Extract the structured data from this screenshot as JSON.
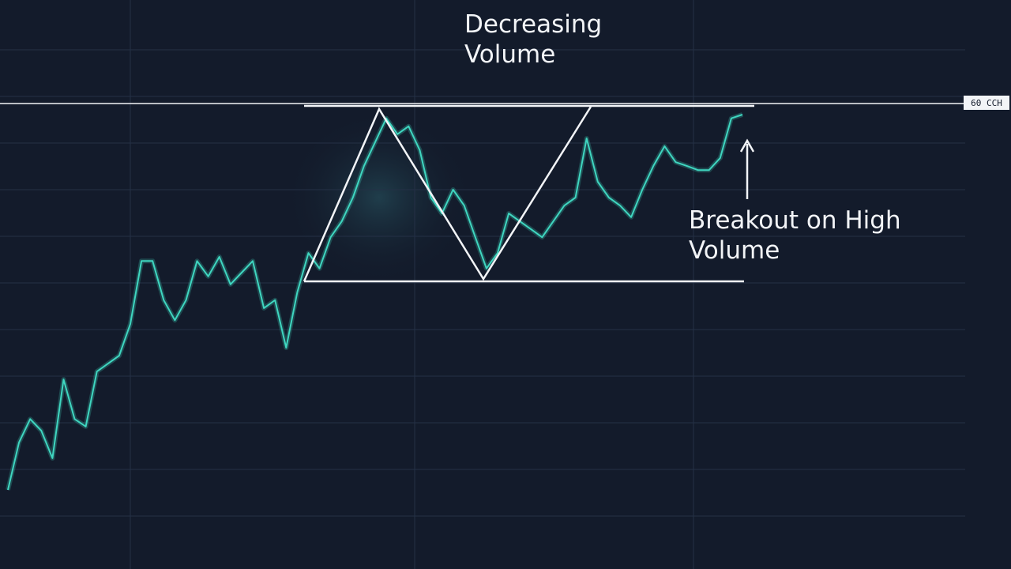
{
  "chart_data": {
    "type": "line",
    "color": "#3fd6c0",
    "values": [
      1.56,
      2.58,
      3.08,
      2.83,
      2.24,
      3.93,
      3.08,
      2.92,
      4.1,
      4.27,
      4.44,
      5.12,
      6.47,
      6.47,
      5.63,
      5.2,
      5.63,
      6.47,
      6.14,
      6.56,
      5.97,
      6.22,
      6.47,
      5.46,
      5.63,
      4.61,
      5.8,
      6.64,
      6.31,
      6.98,
      7.32,
      7.83,
      8.51,
      9.02,
      9.53,
      9.19,
      9.36,
      8.85,
      7.83,
      7.49,
      8.0,
      7.66,
      6.98,
      6.31,
      6.64,
      7.49,
      7.32,
      7.15,
      6.98,
      7.32,
      7.66,
      7.83,
      9.1,
      8.17,
      7.83,
      7.66,
      7.41,
      8.0,
      8.51,
      8.93,
      8.59,
      8.51,
      8.42,
      8.42,
      8.68,
      9.53,
      9.61
    ],
    "ylim": [
      0,
      12
    ],
    "yticks": [
      1,
      2,
      3,
      4,
      5,
      6,
      7,
      8,
      9,
      10,
      11
    ],
    "grid": true,
    "annotations": [
      "Decreasing Volume",
      "Breakout on High Volume"
    ],
    "price_label": "60 CCH"
  }
}
